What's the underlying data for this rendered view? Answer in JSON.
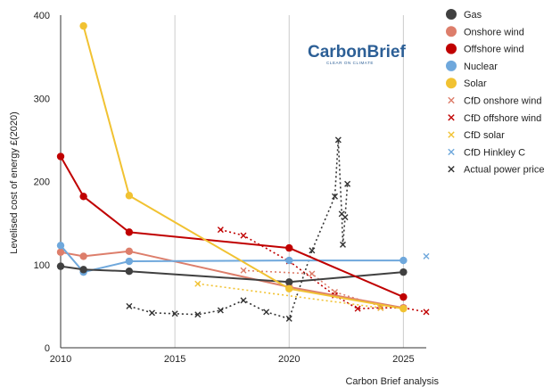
{
  "chart_data": {
    "type": "line",
    "title": "",
    "xlabel": "",
    "ylabel": "Levelised cost of energy £(2020)",
    "xlim": [
      2010,
      2026
    ],
    "ylim": [
      0,
      400
    ],
    "xticks": [
      2010,
      2015,
      2020,
      2025
    ],
    "yticks": [
      0,
      100,
      200,
      300,
      400
    ],
    "grid": "vertical",
    "legend_position": "right",
    "source": "Carbon Brief analysis",
    "logo": {
      "main": "CarbonBrief",
      "sub": "CLEAR ON CLIMATE"
    },
    "series": [
      {
        "name": "Gas",
        "kind": "solid",
        "color": "#404040",
        "points": [
          [
            2010,
            98
          ],
          [
            2011,
            94
          ],
          [
            2013,
            92
          ],
          [
            2020,
            79
          ],
          [
            2025,
            91
          ]
        ]
      },
      {
        "name": "Onshore wind",
        "kind": "solid",
        "color": "#dd7e6b",
        "points": [
          [
            2010,
            115
          ],
          [
            2011,
            110
          ],
          [
            2013,
            116
          ],
          [
            2020,
            73
          ],
          [
            2025,
            48
          ]
        ]
      },
      {
        "name": "Offshore wind",
        "kind": "solid",
        "color": "#c00000",
        "points": [
          [
            2010,
            230
          ],
          [
            2011,
            182
          ],
          [
            2013,
            139
          ],
          [
            2020,
            120
          ],
          [
            2025,
            61
          ]
        ]
      },
      {
        "name": "Nuclear",
        "kind": "solid",
        "color": "#6fa8dc",
        "points": [
          [
            2010,
            123
          ],
          [
            2011,
            91
          ],
          [
            2013,
            104
          ],
          [
            2020,
            105
          ],
          [
            2025,
            105
          ]
        ]
      },
      {
        "name": "Solar",
        "kind": "solid",
        "color": "#f1c232",
        "points": [
          [
            2011,
            387
          ],
          [
            2013,
            183
          ],
          [
            2020,
            71
          ],
          [
            2025,
            47
          ]
        ]
      },
      {
        "name": "CfD onshore wind",
        "kind": "cross",
        "color": "#dd7e6b",
        "points": [
          [
            2018,
            93
          ],
          [
            2021,
            89
          ],
          [
            2022,
            67
          ],
          [
            2024,
            50
          ]
        ]
      },
      {
        "name": "CfD offshore wind",
        "kind": "cross",
        "color": "#c00000",
        "points": [
          [
            2017,
            142
          ],
          [
            2018,
            135
          ],
          [
            2020,
            104
          ],
          [
            2022,
            63
          ],
          [
            2023,
            47
          ],
          [
            2024,
            48
          ],
          [
            2025,
            48
          ],
          [
            2026,
            43
          ]
        ]
      },
      {
        "name": "CfD solar",
        "kind": "cross",
        "color": "#f1c232",
        "points": [
          [
            2016,
            77
          ],
          [
            2024,
            48
          ]
        ]
      },
      {
        "name": "CfD Hinkley C",
        "kind": "cross",
        "color": "#6fa8dc",
        "points": [
          [
            2026,
            110
          ]
        ]
      },
      {
        "name": "Actual power price",
        "kind": "cross",
        "color": "#333333",
        "points": [
          [
            2013,
            50
          ],
          [
            2014,
            42
          ],
          [
            2015,
            41
          ],
          [
            2016,
            40
          ],
          [
            2017,
            45
          ],
          [
            2018,
            57
          ],
          [
            2019,
            43
          ],
          [
            2020,
            35
          ],
          [
            2021,
            117
          ],
          [
            2022,
            182
          ],
          [
            2022.15,
            250
          ],
          [
            2022.3,
            161
          ],
          [
            2022.35,
            124
          ],
          [
            2022.45,
            157
          ],
          [
            2022.55,
            197
          ]
        ]
      }
    ]
  }
}
